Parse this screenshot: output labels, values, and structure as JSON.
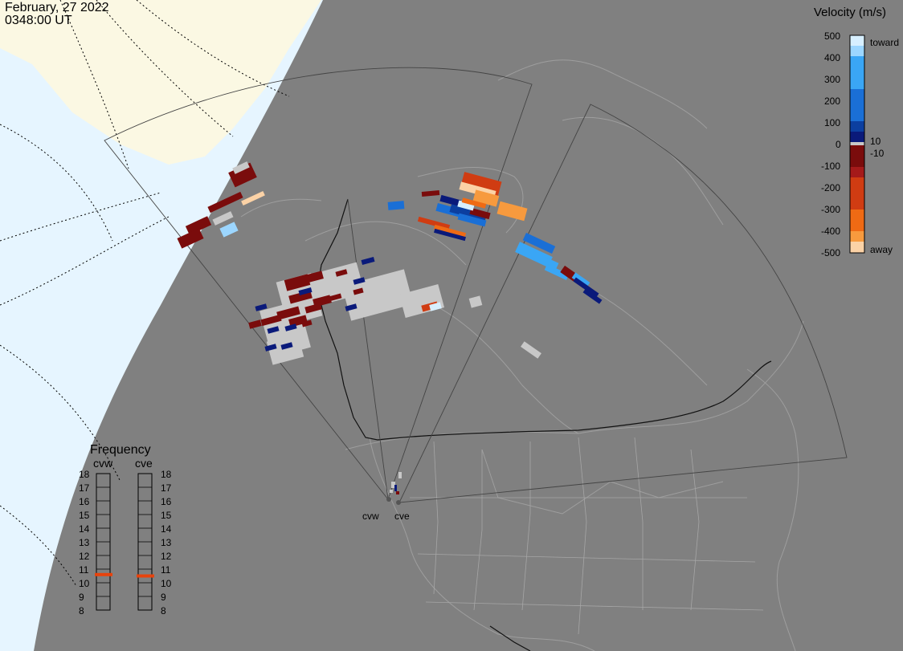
{
  "header": {
    "date": "February, 27 2022",
    "time": "0348:00 UT"
  },
  "velocity_scale": {
    "title": "Velocity (m/s)",
    "tick_labels": [
      "500",
      "400",
      "300",
      "200",
      "100",
      "10",
      "0",
      "-10",
      "-100",
      "-200",
      "-300",
      "-400",
      "-500"
    ],
    "toward_label": "toward",
    "away_label": "away",
    "colors": {
      "toward_500": "#d7efff",
      "toward_400": "#9cd6ff",
      "toward_300": "#3aa6f5",
      "toward_200": "#1a6fd6",
      "toward_100": "#0c3fa0",
      "toward_10": "#0a1a7a",
      "ground": "#c8c8c8",
      "away_10": "#7a0c0c",
      "away_100": "#a51a1a",
      "away_200": "#d03c12",
      "away_300": "#ef6a14",
      "away_400": "#f79a3e",
      "away_500": "#fbd2a6"
    }
  },
  "frequency_panel": {
    "title": "Frequency",
    "radar_labels": [
      "cvw",
      "cve"
    ],
    "scale": [
      "18",
      "17",
      "16",
      "15",
      "14",
      "13",
      "12",
      "11",
      "10",
      "9",
      "8"
    ],
    "cvw_mhz": 10.6,
    "cve_mhz": 10.5,
    "marker_color": "#e8430c"
  },
  "map": {
    "station_labels": [
      "cvw",
      "cve"
    ],
    "land_color": "#808080",
    "sea_color": "#e6f5ff",
    "sunlit_land_color": "#fbf8e3"
  }
}
